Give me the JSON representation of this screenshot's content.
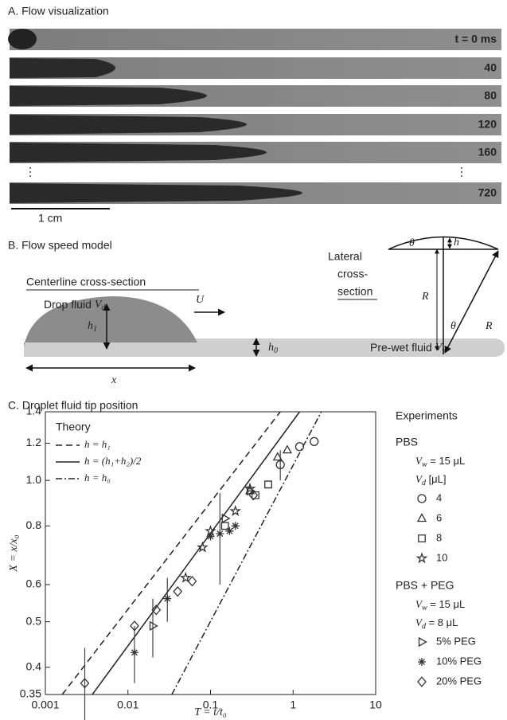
{
  "panel_a": {
    "title": "A. Flow visualization",
    "frames": [
      "t = 0 ms",
      "40",
      "80",
      "120",
      "160",
      "720"
    ],
    "scale_bar": "1 cm"
  },
  "panel_b": {
    "title": "B. Flow speed model",
    "centerline": "Centerline cross-section",
    "drop_fluid": [
      "Drop fluid ",
      "V",
      "d"
    ],
    "u": "U",
    "h1": [
      "h",
      "1"
    ],
    "h0": [
      "h",
      "0"
    ],
    "prewet": [
      "Pre-wet fluid ",
      "V",
      "w"
    ],
    "x": "x",
    "lateral": [
      "Lateral",
      "cross-",
      "section"
    ],
    "theta": "θ",
    "h": "h",
    "r": "R"
  },
  "panel_c": {
    "title": "C. Droplet fluid tip position"
  },
  "chart_data": {
    "type": "scatter",
    "xlabel": "T = t/t₀",
    "ylabel": "X = x/x₀",
    "xscale": "log",
    "yscale": "log",
    "xlim": [
      0.001,
      10
    ],
    "xticks": [
      0.001,
      0.01,
      0.1,
      1,
      10
    ],
    "ylim": [
      0.35,
      1.4
    ],
    "yticks": [
      0.35,
      0.4,
      0.5,
      0.6,
      0.8,
      {
        "value": 1,
        "label": "1.0"
      },
      1.2,
      1.4
    ],
    "theory_title": "Theory",
    "legend_title": "Experiments",
    "legend_groups": [
      {
        "title": "PBS",
        "notes": [
          [
            "V",
            "w",
            " = 15 μL"
          ],
          [
            "V",
            "d",
            " [μL]"
          ]
        ]
      },
      {
        "title": "PBS + PEG",
        "notes": [
          [
            "V",
            "w",
            " = 15 μL"
          ],
          [
            "V",
            "d",
            " = 8 μL"
          ]
        ]
      }
    ],
    "theory": [
      {
        "name": "h = h₁",
        "style": "dashed",
        "color": "#222222",
        "x": [
          0.0016,
          0.7
        ],
        "values": [
          0.35,
          1.4
        ]
      },
      {
        "name": "h = (h₁+h₂)/2",
        "style": "solid",
        "color": "#222222",
        "x": [
          0.0037,
          1.2
        ],
        "values": [
          0.35,
          1.4
        ]
      },
      {
        "name": "h = h₀",
        "style": "dashdot",
        "color": "#222222",
        "x": [
          0.034,
          2.2
        ],
        "values": [
          0.35,
          1.4
        ]
      }
    ],
    "series": [
      {
        "name": "4",
        "group": 0,
        "marker": "circle",
        "color": "#333333",
        "x": [
          0.7,
          1.2,
          1.8
        ],
        "values": [
          1.08,
          1.18,
          1.21
        ],
        "errors": [
          0.08,
          null,
          null
        ]
      },
      {
        "name": "6",
        "group": 0,
        "marker": "triangle",
        "color": "#333333",
        "x": [
          0.3,
          0.65,
          0.85
        ],
        "values": [
          0.95,
          1.12,
          1.16
        ],
        "errors": [
          null,
          null,
          null
        ]
      },
      {
        "name": "8",
        "group": 0,
        "marker": "square",
        "color": "#333333",
        "x": [
          0.15,
          0.35,
          0.5
        ],
        "values": [
          0.8,
          0.93,
          0.98
        ],
        "errors": [
          null,
          null,
          null
        ]
      },
      {
        "name": "10",
        "group": 0,
        "marker": "star",
        "color": "#333333",
        "x": [
          0.05,
          0.08,
          0.1,
          0.2,
          0.3
        ],
        "values": [
          0.62,
          0.72,
          0.78,
          0.86,
          0.96
        ],
        "errors": [
          null,
          null,
          null,
          null,
          null
        ]
      },
      {
        "name": "5% PEG",
        "group": 1,
        "marker": "tri-right",
        "color": "#333333",
        "x": [
          0.02,
          0.15,
          0.3
        ],
        "values": [
          0.49,
          0.83,
          0.95
        ],
        "errors": [
          0.07,
          null,
          null
        ]
      },
      {
        "name": "10% PEG",
        "group": 1,
        "marker": "asterisk",
        "color": "#333333",
        "x": [
          0.012,
          0.03,
          0.1,
          0.13,
          0.17,
          0.2
        ],
        "values": [
          0.43,
          0.56,
          0.76,
          0.77,
          0.78,
          0.8
        ],
        "errors": [
          0.06,
          0.06,
          null,
          0.17,
          null,
          null
        ]
      },
      {
        "name": "20% PEG",
        "group": 1,
        "marker": "diamond",
        "color": "#333333",
        "x": [
          0.003,
          0.012,
          0.022,
          0.04,
          0.06,
          0.33
        ],
        "values": [
          0.37,
          0.49,
          0.53,
          0.58,
          0.61,
          0.93
        ],
        "errors": [
          0.07,
          null,
          null,
          null,
          null,
          null
        ]
      }
    ]
  }
}
